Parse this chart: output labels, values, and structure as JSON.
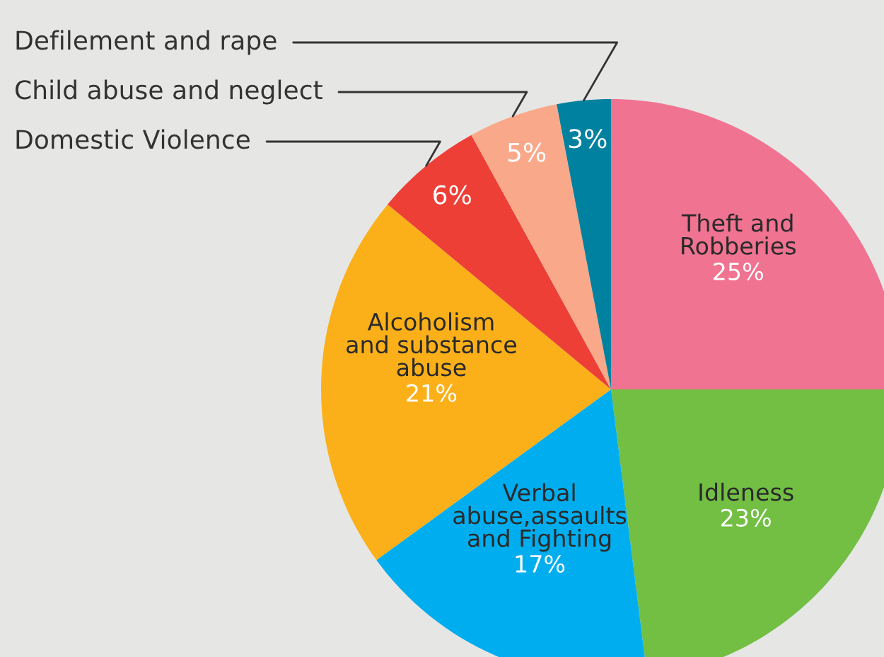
{
  "chart_data": {
    "type": "pie",
    "categories": [
      "Theft and\nRobberies",
      "Idleness",
      "Verbal\nabuse,assaults\nand Fighting",
      "Alcoholism\nand substance\nabuse",
      "Domestic Violence",
      "Child abuse and neglect",
      "Defilement and rape"
    ],
    "values": [
      25,
      23,
      17,
      21,
      6,
      5,
      3
    ],
    "colors": [
      "#f07391",
      "#72bf44",
      "#00aeef",
      "#fbb01a",
      "#ee3f36",
      "#f9a98a",
      "#00819f"
    ],
    "value_labels": [
      "25%",
      "23%",
      "17%",
      "21%",
      "6%",
      "5%",
      "3%"
    ]
  }
}
